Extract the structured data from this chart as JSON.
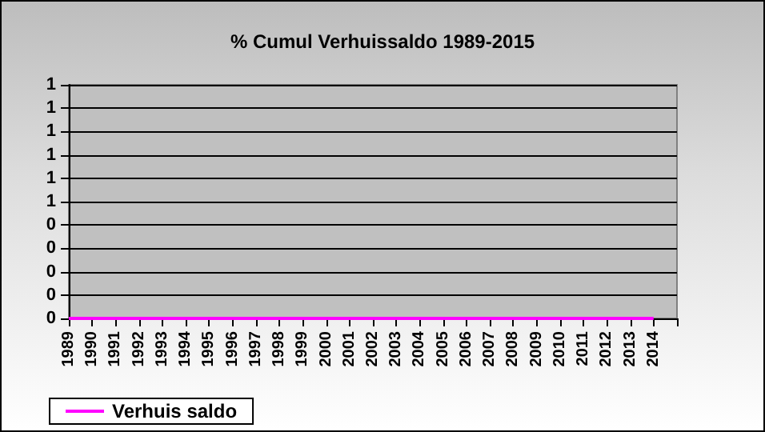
{
  "chart_data": {
    "type": "line",
    "title": "% Cumul Verhuissaldo 1989-2015",
    "categories": [
      "1989",
      "1990",
      "1991",
      "1992",
      "1993",
      "1994",
      "1995",
      "1996",
      "1997",
      "1998",
      "1999",
      "2000",
      "2001",
      "2002",
      "2003",
      "2004",
      "2005",
      "2006",
      "2007",
      "2008",
      "2009",
      "2010",
      "2011",
      "2012",
      "2013",
      "2014",
      null
    ],
    "series": [
      {
        "name": "Verhuis saldo",
        "color": "#ff00ff",
        "values": [
          0,
          0,
          0,
          0,
          0,
          0,
          0,
          0,
          0,
          0,
          0,
          0,
          0,
          0,
          0,
          0,
          0,
          0,
          0,
          0,
          0,
          0,
          0,
          0,
          0,
          0,
          null
        ]
      }
    ],
    "ylim": [
      0,
      1
    ],
    "yticks": [
      0,
      {
        "value": 0.1,
        "label": "0"
      },
      {
        "value": 0.2,
        "label": "0"
      },
      {
        "value": 0.3,
        "label": "0"
      },
      {
        "value": 0.4,
        "label": "0"
      },
      {
        "value": 0.5,
        "label": "1"
      },
      {
        "value": 0.6,
        "label": "1"
      },
      {
        "value": 0.7,
        "label": "1"
      },
      {
        "value": 0.8,
        "label": "1"
      },
      {
        "value": 0.9,
        "label": "1"
      },
      1
    ],
    "grid": "y",
    "legend": "bottom left",
    "marker": "none",
    "line_style": "solid"
  }
}
